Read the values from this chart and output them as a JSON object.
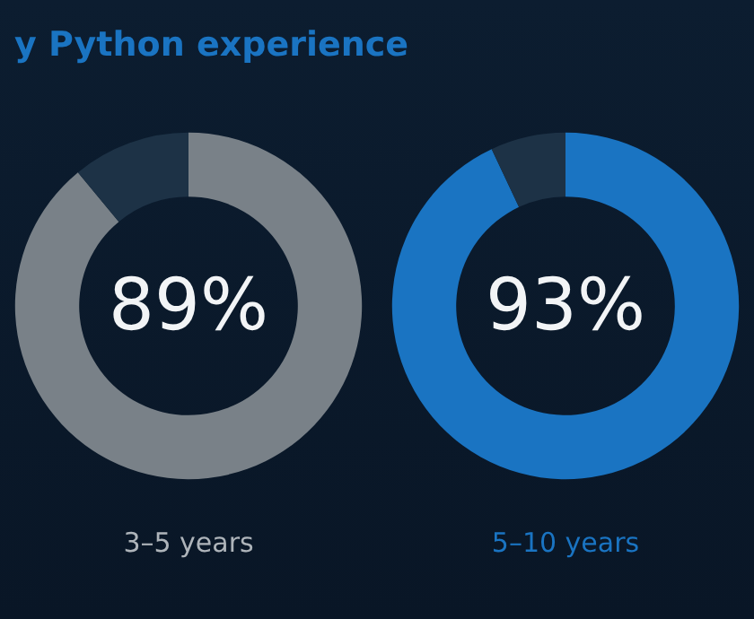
{
  "chart_data": [
    {
      "type": "donut",
      "title": "y Python experience",
      "xlabel": "3–5 years",
      "categories": [
        null,
        null
      ],
      "values": [
        89,
        11
      ],
      "colors": [
        "#798188",
        "#1d3246"
      ],
      "value_labels": [
        "89%",
        null
      ]
    },
    {
      "type": "donut",
      "xlabel": "5–10 years",
      "categories": [
        null,
        null
      ],
      "values": [
        93,
        7
      ],
      "colors": [
        "#1a74c2",
        "#1d3246"
      ],
      "value_labels": [
        "93%",
        null
      ]
    }
  ]
}
